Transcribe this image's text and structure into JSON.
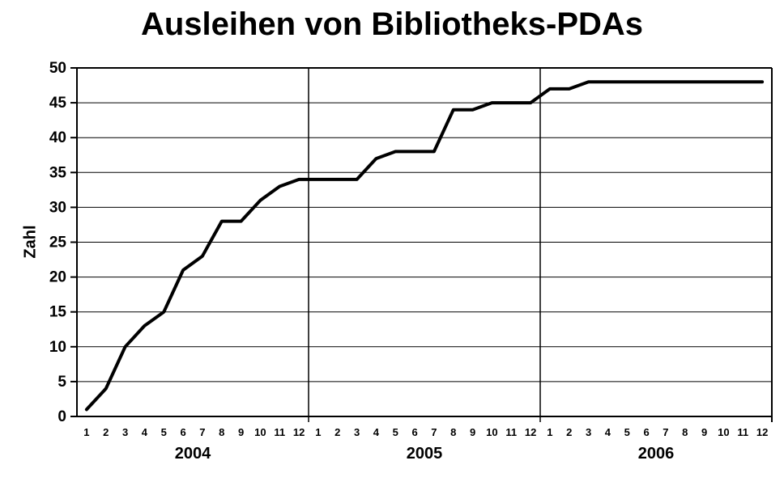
{
  "chart_data": {
    "type": "line",
    "title": "Ausleihen von Bibliotheks-PDAs",
    "ylabel": "Zahl",
    "ylim": [
      0,
      50
    ],
    "ytick_step": 5,
    "ytick_labels": [
      "0",
      "5",
      "10",
      "15",
      "20",
      "25",
      "30",
      "35",
      "40",
      "45",
      "50"
    ],
    "month_labels": [
      "1",
      "2",
      "3",
      "4",
      "5",
      "6",
      "7",
      "8",
      "9",
      "10",
      "11",
      "12"
    ],
    "years": [
      {
        "label": "2004",
        "values": [
          1,
          4,
          10,
          13,
          15,
          21,
          23,
          28,
          28,
          31,
          33,
          34
        ]
      },
      {
        "label": "2005",
        "values": [
          34,
          34,
          34,
          37,
          38,
          38,
          38,
          44,
          44,
          45,
          45,
          45
        ]
      },
      {
        "label": "2006",
        "values": [
          47,
          47,
          48,
          48,
          48,
          48,
          48,
          48,
          48,
          48,
          48,
          48
        ]
      }
    ],
    "line_color": "#000000",
    "axis_color": "#000000",
    "background": "#ffffff",
    "legend_position": "none",
    "grid": {
      "horizontal_every": 5,
      "vertical_year_separators": true
    }
  }
}
